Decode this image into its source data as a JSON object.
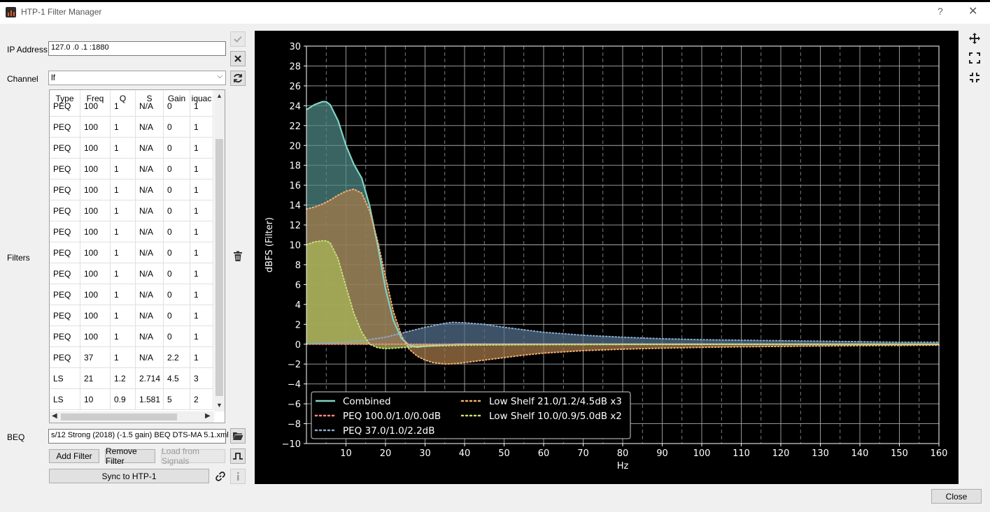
{
  "window": {
    "title": "HTP-1 Filter Manager",
    "help": "?",
    "close": "✕"
  },
  "form": {
    "ip_label": "IP Address",
    "ip_value": "127.0  .0  .1  :1880",
    "channel_label": "Channel",
    "channel_value": "lf",
    "filters_label": "Filters",
    "beq_label": "BEQ",
    "beq_value": "s/12 Strong (2018) (-1.5 gain) BEQ DTS-MA 5.1.xml"
  },
  "table": {
    "columns": [
      "Type",
      "Freq",
      "Q",
      "S",
      "Gain",
      "iquac"
    ],
    "rows": [
      [
        "PEQ",
        "100",
        "1",
        "N/A",
        "0",
        "1"
      ],
      [
        "PEQ",
        "100",
        "1",
        "N/A",
        "0",
        "1"
      ],
      [
        "PEQ",
        "100",
        "1",
        "N/A",
        "0",
        "1"
      ],
      [
        "PEQ",
        "100",
        "1",
        "N/A",
        "0",
        "1"
      ],
      [
        "PEQ",
        "100",
        "1",
        "N/A",
        "0",
        "1"
      ],
      [
        "PEQ",
        "100",
        "1",
        "N/A",
        "0",
        "1"
      ],
      [
        "PEQ",
        "100",
        "1",
        "N/A",
        "0",
        "1"
      ],
      [
        "PEQ",
        "100",
        "1",
        "N/A",
        "0",
        "1"
      ],
      [
        "PEQ",
        "100",
        "1",
        "N/A",
        "0",
        "1"
      ],
      [
        "PEQ",
        "100",
        "1",
        "N/A",
        "0",
        "1"
      ],
      [
        "PEQ",
        "100",
        "1",
        "N/A",
        "0",
        "1"
      ],
      [
        "PEQ",
        "100",
        "1",
        "N/A",
        "0",
        "1"
      ],
      [
        "PEQ",
        "37",
        "1",
        "N/A",
        "2.2",
        "1"
      ],
      [
        "LS",
        "21",
        "1.2",
        "2.714",
        "4.5",
        "3"
      ],
      [
        "LS",
        "10",
        "0.9",
        "1.581",
        "5",
        "2"
      ]
    ]
  },
  "buttons": {
    "add_filter": "Add Filter",
    "remove_filter": "Remove Filter",
    "load_from_signals": "Load from Signals",
    "sync": "Sync to HTP-1",
    "close": "Close"
  },
  "icons": {
    "accept": "check-icon",
    "clear": "x-icon",
    "refresh": "refresh-icon",
    "delete": "trash-icon",
    "browse": "folder-open-icon",
    "signal": "waveform-icon",
    "link": "link-icon",
    "info": "info-icon",
    "pan": "move-icon",
    "zoom_fit": "expand-icon",
    "zoom_shrink": "compress-icon"
  },
  "chart_data": {
    "type": "line",
    "xlabel": "Hz",
    "ylabel": "dBFS (Filter)",
    "xlim": [
      0,
      160
    ],
    "ylim": [
      -10,
      30
    ],
    "xticks": [
      10,
      20,
      30,
      40,
      50,
      60,
      70,
      80,
      90,
      100,
      110,
      120,
      130,
      140,
      150,
      160
    ],
    "yticks": [
      -10,
      -8,
      -6,
      -4,
      -2,
      0,
      2,
      4,
      6,
      8,
      10,
      12,
      14,
      16,
      18,
      20,
      22,
      24,
      26,
      28,
      30
    ],
    "grid": true,
    "legend_position": "bottom-left",
    "series": [
      {
        "name": "Combined",
        "style": "solid",
        "color": "#7fd3c4",
        "fill": "#4f8a86",
        "x": [
          0,
          2,
          4,
          5,
          6,
          8,
          10,
          12,
          14,
          16,
          18,
          20,
          22,
          24,
          26,
          28,
          30,
          32,
          34,
          36,
          38,
          40,
          45,
          50,
          60,
          70,
          80,
          90,
          100,
          120,
          140,
          160
        ],
        "y": [
          23.6,
          24.1,
          24.4,
          24.4,
          24.1,
          22.5,
          20.0,
          18.1,
          16.7,
          13.9,
          10.0,
          5.6,
          2.4,
          0.6,
          -0.1,
          -0.3,
          -0.2,
          -0.15,
          -0.1,
          -0.05,
          0,
          0,
          0,
          0,
          0,
          0,
          0,
          0,
          0,
          0,
          0,
          0
        ]
      },
      {
        "name": "PEQ 100.0/1.0/0.0dB",
        "style": "dotted",
        "color": "#ff8a80",
        "x": [
          0,
          40,
          80,
          120,
          160
        ],
        "y": [
          0,
          0,
          0,
          0,
          0
        ]
      },
      {
        "name": "PEQ 37.0/1.0/2.2dB",
        "style": "dotted",
        "color": "#8aaccd",
        "fill": "#55708f",
        "x": [
          0,
          5,
          10,
          15,
          20,
          25,
          30,
          35,
          37,
          40,
          45,
          50,
          55,
          60,
          70,
          80,
          90,
          100,
          110,
          120,
          130,
          140,
          150,
          160
        ],
        "y": [
          0.05,
          0.1,
          0.2,
          0.4,
          0.7,
          1.2,
          1.7,
          2.1,
          2.2,
          2.15,
          2.0,
          1.7,
          1.45,
          1.2,
          0.9,
          0.7,
          0.55,
          0.45,
          0.4,
          0.35,
          0.3,
          0.25,
          0.2,
          0.2
        ]
      },
      {
        "name": "Low Shelf 21.0/1.2/4.5dB x3",
        "style": "dotted",
        "color": "#f5b071",
        "fill": "#a87a4a",
        "x": [
          0,
          2,
          4,
          6,
          8,
          10,
          12,
          14,
          16,
          18,
          20,
          22,
          24,
          26,
          28,
          30,
          32,
          35,
          38,
          40,
          45,
          50,
          55,
          60,
          70,
          80,
          90,
          100,
          110,
          120,
          130,
          140,
          150,
          160
        ],
        "y": [
          13.6,
          13.8,
          14.1,
          14.5,
          15.0,
          15.4,
          15.6,
          15.2,
          13.4,
          10.4,
          6.8,
          3.3,
          0.9,
          -0.5,
          -1.2,
          -1.6,
          -1.85,
          -2.0,
          -1.95,
          -1.85,
          -1.6,
          -1.35,
          -1.1,
          -0.9,
          -0.65,
          -0.5,
          -0.4,
          -0.32,
          -0.26,
          -0.22,
          -0.18,
          -0.15,
          -0.13,
          -0.1
        ]
      },
      {
        "name": "Low Shelf 10.0/0.9/5.0dB x2",
        "style": "dotted",
        "color": "#c6e27a",
        "fill": "#a8b858",
        "x": [
          0,
          2,
          4,
          5,
          6,
          8,
          10,
          12,
          14,
          16,
          18,
          20,
          22,
          24,
          26,
          28,
          30,
          35,
          40,
          50,
          60,
          80,
          100,
          130,
          160
        ],
        "y": [
          10.0,
          10.3,
          10.4,
          10.4,
          10.2,
          8.6,
          5.8,
          3.1,
          1.2,
          0.0,
          -0.35,
          -0.45,
          -0.4,
          -0.35,
          -0.3,
          -0.25,
          -0.2,
          -0.15,
          -0.1,
          -0.07,
          -0.05,
          -0.03,
          -0.02,
          -0.01,
          0
        ]
      }
    ]
  }
}
